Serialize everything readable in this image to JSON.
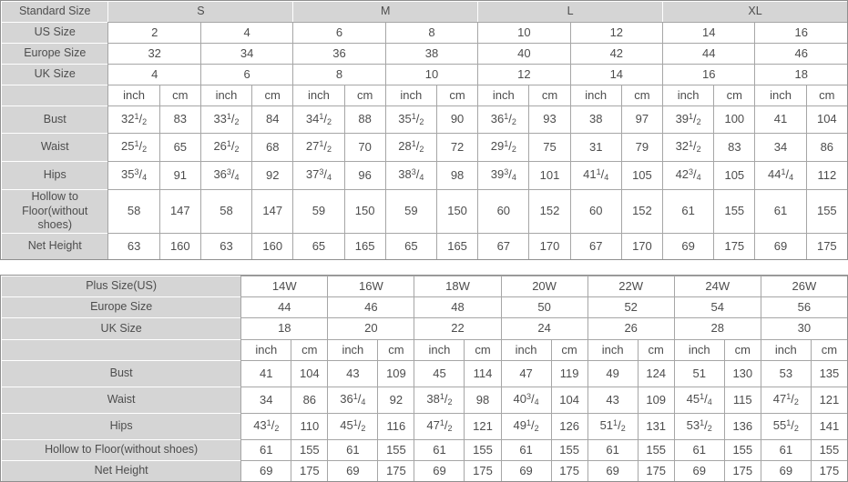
{
  "colors": {
    "header_bg": "#d5d5d5",
    "cell_bg": "#ffffff",
    "grid_line": "#a6a6a6",
    "header_separator": "#ffffff",
    "outer_border": "#8f8f8f",
    "text": "#4d4d4d"
  },
  "standard_table": {
    "group_row": {
      "label": "Standard Size",
      "groups": [
        "S",
        "M",
        "L",
        "XL"
      ]
    },
    "size_rows": [
      {
        "label": "US Size",
        "values": [
          "2",
          "4",
          "6",
          "8",
          "10",
          "12",
          "14",
          "16"
        ]
      },
      {
        "label": "Europe Size",
        "values": [
          "32",
          "34",
          "36",
          "38",
          "40",
          "42",
          "44",
          "46"
        ]
      },
      {
        "label": "UK Size",
        "values": [
          "4",
          "6",
          "8",
          "10",
          "12",
          "14",
          "16",
          "18"
        ]
      }
    ],
    "unit_labels": [
      "inch",
      "cm"
    ],
    "measurement_rows": [
      {
        "label": "Bust",
        "values": [
          "32 1/2",
          "83",
          "33 1/2",
          "84",
          "34 1/2",
          "88",
          "35 1/2",
          "90",
          "36 1/2",
          "93",
          "38",
          "97",
          "39 1/2",
          "100",
          "41",
          "104"
        ]
      },
      {
        "label": "Waist",
        "values": [
          "25 1/2",
          "65",
          "26 1/2",
          "68",
          "27 1/2",
          "70",
          "28 1/2",
          "72",
          "29 1/2",
          "75",
          "31",
          "79",
          "32 1/2",
          "83",
          "34",
          "86"
        ]
      },
      {
        "label": "Hips",
        "values": [
          "35 3/4",
          "91",
          "36 3/4",
          "92",
          "37 3/4",
          "96",
          "38 3/4",
          "98",
          "39 3/4",
          "101",
          "41 1/4",
          "105",
          "42 3/4",
          "105",
          "44 1/4",
          "112"
        ]
      },
      {
        "label": "Hollow to Floor(without shoes)",
        "values": [
          "58",
          "147",
          "58",
          "147",
          "59",
          "150",
          "59",
          "150",
          "60",
          "152",
          "60",
          "152",
          "61",
          "155",
          "61",
          "155"
        ]
      },
      {
        "label": "Net Height",
        "values": [
          "63",
          "160",
          "63",
          "160",
          "65",
          "165",
          "65",
          "165",
          "67",
          "170",
          "67",
          "170",
          "69",
          "175",
          "69",
          "175"
        ]
      }
    ]
  },
  "plus_table": {
    "size_rows": [
      {
        "label": "Plus Size(US)",
        "values": [
          "14W",
          "16W",
          "18W",
          "20W",
          "22W",
          "24W",
          "26W"
        ]
      },
      {
        "label": "Europe Size",
        "values": [
          "44",
          "46",
          "48",
          "50",
          "52",
          "54",
          "56"
        ]
      },
      {
        "label": "UK Size",
        "values": [
          "18",
          "20",
          "22",
          "24",
          "26",
          "28",
          "30"
        ]
      }
    ],
    "unit_labels": [
      "inch",
      "cm"
    ],
    "measurement_rows": [
      {
        "label": "Bust",
        "values": [
          "41",
          "104",
          "43",
          "109",
          "45",
          "114",
          "47",
          "119",
          "49",
          "124",
          "51",
          "130",
          "53",
          "135"
        ]
      },
      {
        "label": "Waist",
        "values": [
          "34",
          "86",
          "36 1/4",
          "92",
          "38 1/2",
          "98",
          "40 3/4",
          "104",
          "43",
          "109",
          "45 1/4",
          "115",
          "47 1/2",
          "121"
        ]
      },
      {
        "label": "Hips",
        "values": [
          "43 1/2",
          "110",
          "45 1/2",
          "116",
          "47 1/2",
          "121",
          "49 1/2",
          "126",
          "51 1/2",
          "131",
          "53 1/2",
          "136",
          "55 1/2",
          "141"
        ]
      },
      {
        "label": "Hollow to Floor(without shoes)",
        "values": [
          "61",
          "155",
          "61",
          "155",
          "61",
          "155",
          "61",
          "155",
          "61",
          "155",
          "61",
          "155",
          "61",
          "155"
        ]
      },
      {
        "label": "Net Height",
        "values": [
          "69",
          "175",
          "69",
          "175",
          "69",
          "175",
          "69",
          "175",
          "69",
          "175",
          "69",
          "175",
          "69",
          "175"
        ]
      }
    ]
  }
}
